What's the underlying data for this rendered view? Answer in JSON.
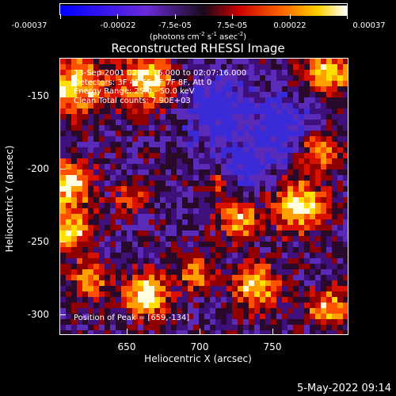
{
  "colorbar": {
    "ticks": [
      "-0.00037",
      "-0.00022",
      "-7.5e-05",
      "7.5e-05",
      "0.00022",
      "0.00037"
    ],
    "units_main": "(photons cm",
    "units_exp1": "-2",
    "units_mid": " s",
    "units_exp2": "-1",
    "units_tail": " asec",
    "units_exp3": "-2",
    "units_end": ")"
  },
  "title": "Reconstructed RHESSI Image",
  "info": {
    "line1": "13-Sep-2001 02:01:16.000 to 02:07:16.000",
    "line2": "Detectors: 3F 4F 5F 6F 7F 8F, Att 0",
    "line3": "Energy Range: 25.0 - 50.0 keV",
    "line4": "Clean    Total counts: 7.90E+03"
  },
  "peak": "Position of Peak = [659,-134]",
  "axes": {
    "xlabel": "Heliocentric X (arcsec)",
    "ylabel": "Heliocentric Y (arcsec)",
    "xticks": [
      "650",
      "700",
      "750"
    ],
    "yticks": [
      "-150",
      "-200",
      "-250",
      "-300"
    ]
  },
  "timestamp": "5-May-2022 09:14"
}
